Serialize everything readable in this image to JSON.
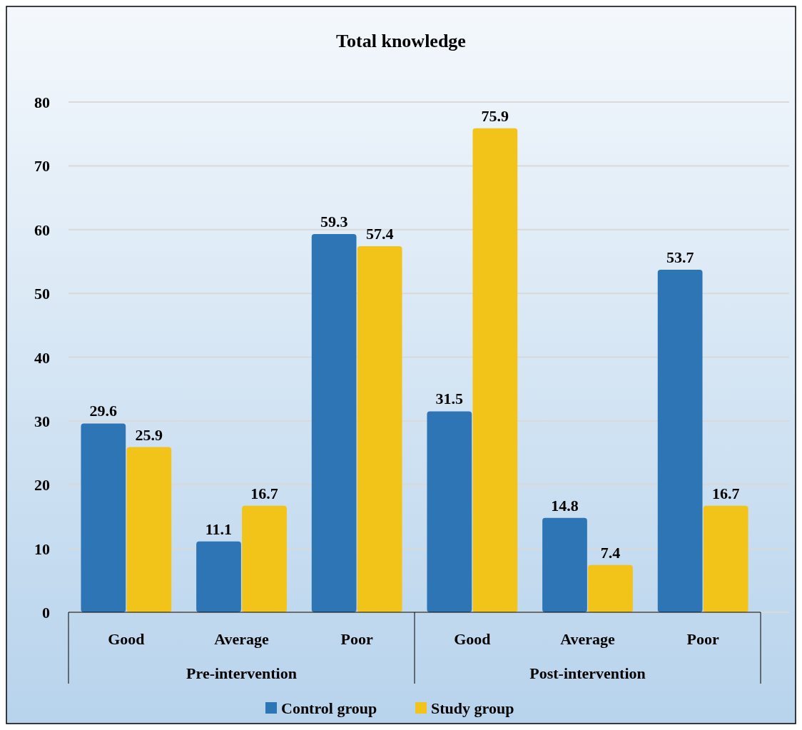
{
  "chart_data": {
    "type": "bar",
    "title": "Total knowledge",
    "categories": [
      "Good",
      "Average",
      "Poor",
      "Good",
      "Average",
      "Poor"
    ],
    "series": [
      {
        "name": "Control group",
        "color": "#2e75b6",
        "values": [
          29.6,
          11.1,
          59.3,
          31.5,
          14.8,
          53.7
        ]
      },
      {
        "name": "Study group",
        "color": "#f2c318",
        "values": [
          25.9,
          16.7,
          57.4,
          75.9,
          7.4,
          16.7
        ]
      }
    ],
    "ylim": [
      0,
      80
    ],
    "yticks": [
      0,
      10,
      20,
      30,
      40,
      50,
      60,
      70,
      80
    ],
    "grid": "y",
    "data_labels": true,
    "legend": "bottom",
    "annotations": [
      "Pre-intervention",
      "Post-intervention"
    ]
  }
}
